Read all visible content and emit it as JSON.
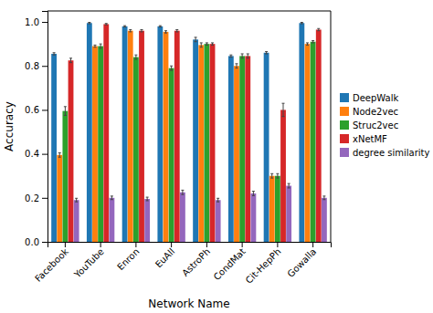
{
  "chart_data": {
    "type": "bar",
    "xlabel": "Network Name",
    "ylabel": "Accuracy",
    "categories": [
      "Facebook",
      "YouTube",
      "Enron",
      "EuAll",
      "AstroPh",
      "CondMat",
      "Cit-HepPh",
      "Gowalla"
    ],
    "series": [
      {
        "name": "DeepWalk",
        "values": [
          0.855,
          0.995,
          0.98,
          0.98,
          0.92,
          0.845,
          0.86,
          0.995
        ],
        "errors": [
          0.005,
          0.003,
          0.003,
          0.003,
          0.01,
          0.005,
          0.005,
          0.003
        ]
      },
      {
        "name": "Node2vec",
        "values": [
          0.395,
          0.89,
          0.96,
          0.955,
          0.895,
          0.8,
          0.3,
          0.9
        ],
        "errors": [
          0.01,
          0.005,
          0.005,
          0.005,
          0.01,
          0.01,
          0.01,
          0.005
        ]
      },
      {
        "name": "Struc2vec",
        "values": [
          0.595,
          0.89,
          0.84,
          0.79,
          0.9,
          0.845,
          0.3,
          0.91
        ],
        "errors": [
          0.02,
          0.01,
          0.01,
          0.01,
          0.005,
          0.01,
          0.01,
          0.005
        ]
      },
      {
        "name": "xNetMF",
        "values": [
          0.825,
          0.99,
          0.96,
          0.96,
          0.9,
          0.845,
          0.6,
          0.965
        ],
        "errors": [
          0.01,
          0.003,
          0.005,
          0.005,
          0.005,
          0.01,
          0.03,
          0.005
        ]
      },
      {
        "name": "degree similarity",
        "values": [
          0.19,
          0.2,
          0.195,
          0.225,
          0.19,
          0.22,
          0.255,
          0.2
        ],
        "errors": [
          0.008,
          0.008,
          0.008,
          0.01,
          0.008,
          0.01,
          0.01,
          0.008
        ]
      }
    ],
    "ylim": [
      0.0,
      1.05
    ],
    "yticks": [
      {
        "value": 0.0,
        "label": "0.0"
      },
      0.2,
      0.4,
      0.6,
      0.8,
      {
        "value": 1.0,
        "label": "1.0"
      }
    ],
    "legend": "center right",
    "grid": false
  }
}
